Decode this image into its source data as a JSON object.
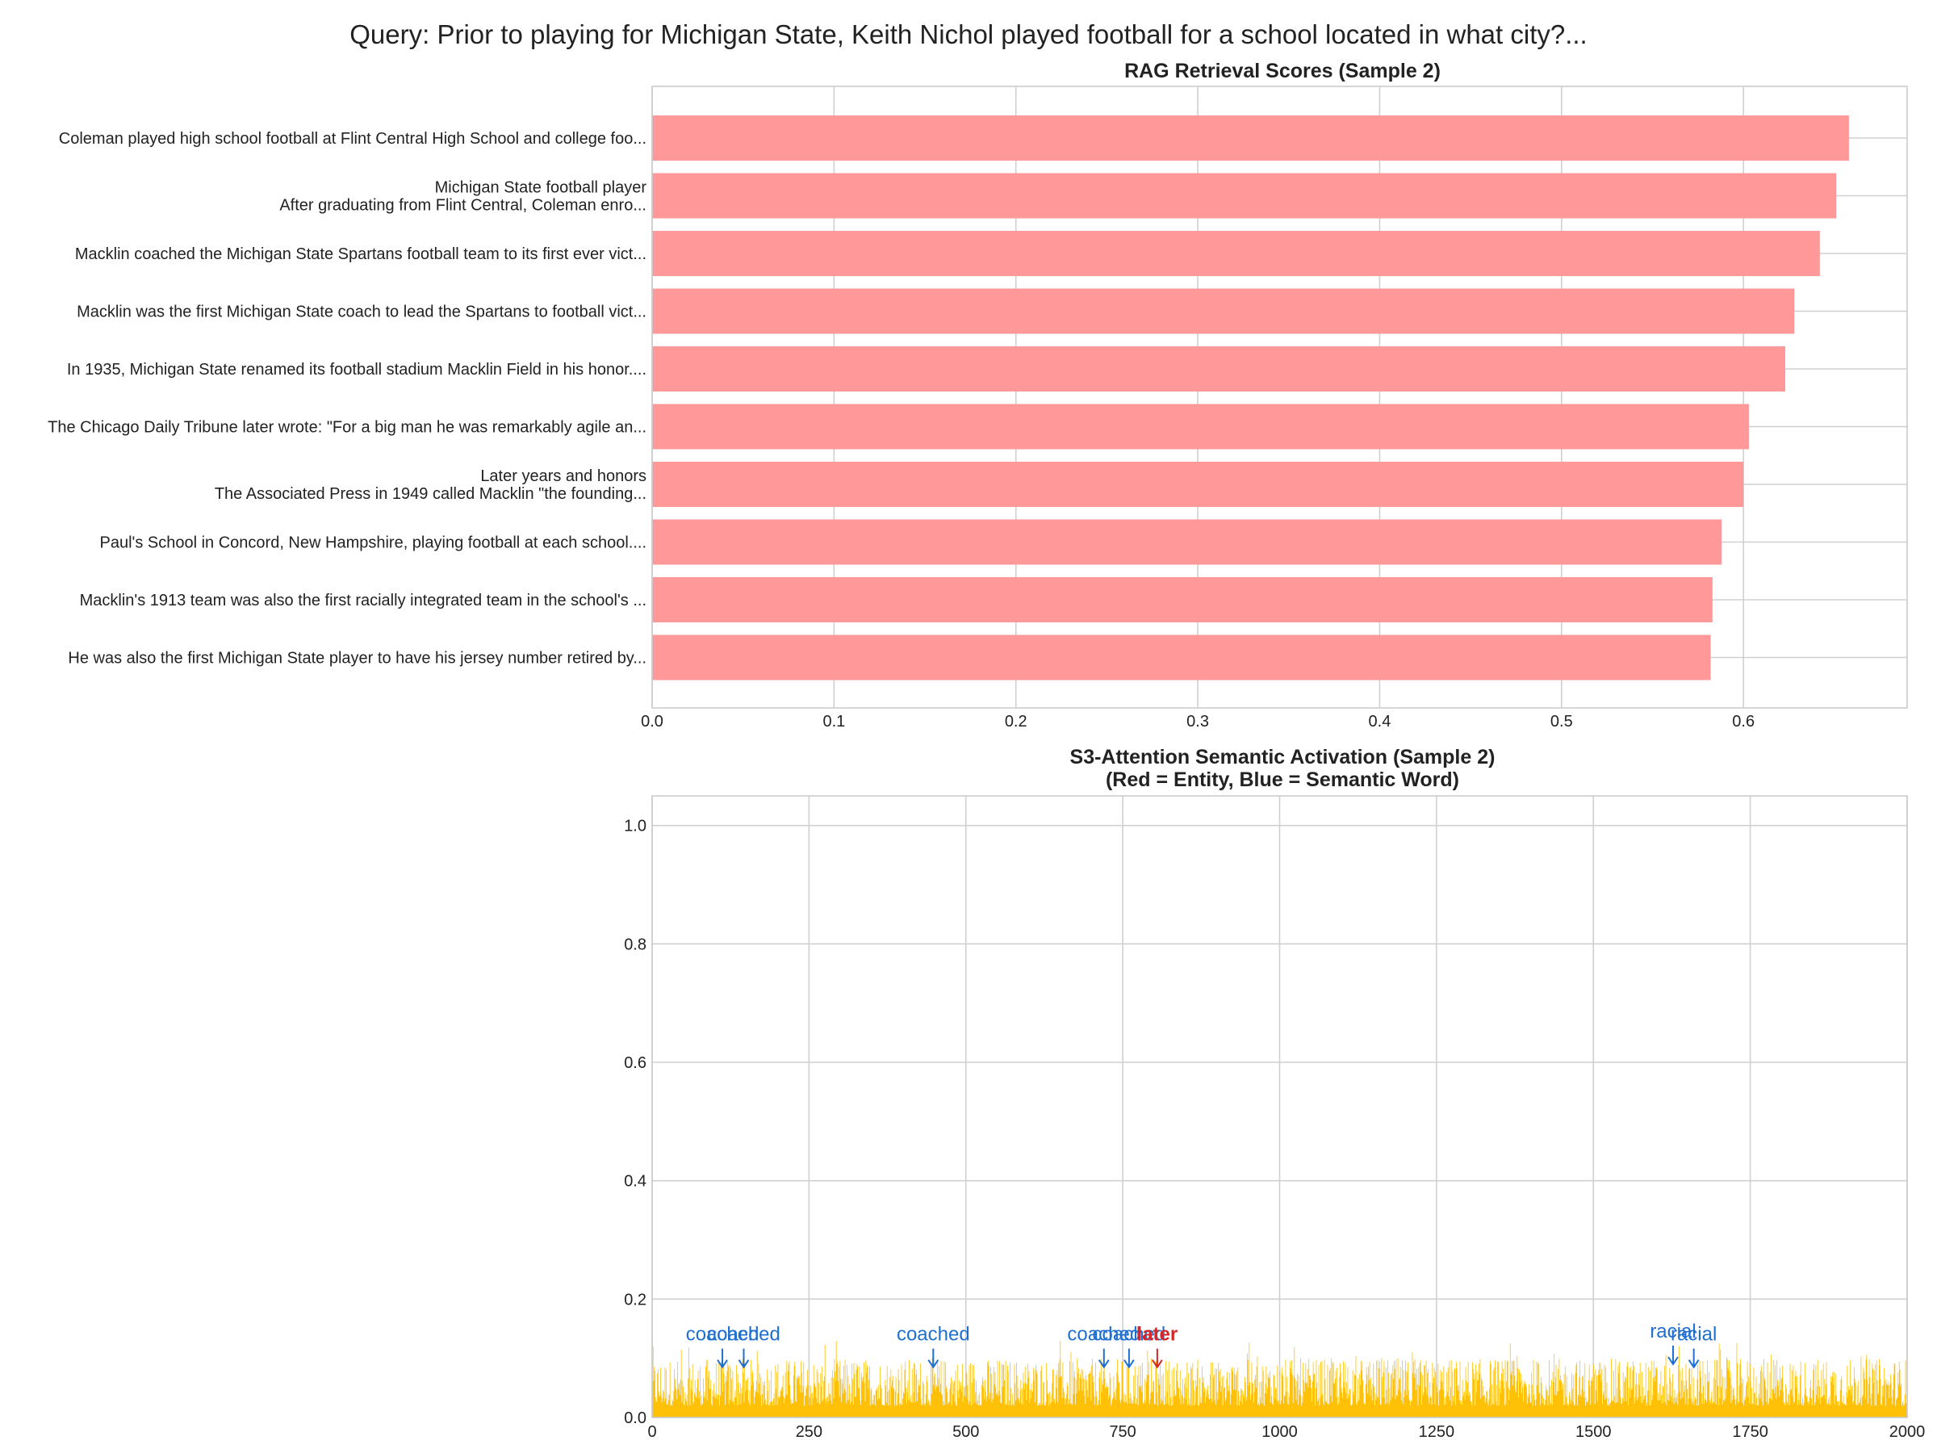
{
  "suptitle": "Query: Prior to playing for Michigan State, Keith Nichol played football for a school located in what city?...",
  "chart_data": [
    {
      "type": "bar",
      "orientation": "horizontal",
      "title": "RAG Retrieval Scores (Sample 2)",
      "color": "#ff9999",
      "categories": [
        "Coleman played high school football at Flint Central High School and college foo...",
        "Michigan State football player\nAfter graduating from Flint Central, Coleman enro...",
        "Macklin coached the Michigan State Spartans football team to its first ever vict...",
        "Macklin was the first Michigan State coach to lead the Spartans to football vict...",
        "In 1935, Michigan State renamed its football stadium Macklin Field in his honor....",
        "The Chicago Daily Tribune later wrote: \"For a big man he was remarkably agile an...",
        "Later years and honors\nThe Associated Press in 1949 called Macklin \"the founding...",
        "Paul's School in Concord, New Hampshire, playing football at each school....",
        "Macklin's 1913 team was also the first racially integrated team in the school's ...",
        "He was also the first Michigan State player to have his jersey number retired by..."
      ],
      "values": [
        0.658,
        0.651,
        0.642,
        0.628,
        0.623,
        0.603,
        0.6,
        0.588,
        0.583,
        0.582
      ],
      "xlim": [
        0,
        0.69
      ],
      "xticks": [
        "0.0",
        "0.1",
        "0.2",
        "0.3",
        "0.4",
        "0.5",
        "0.6"
      ],
      "grid": true
    },
    {
      "type": "bar",
      "title": "S3-Attention Semantic Activation (Sample 2)",
      "subtitle": "(Red = Entity, Blue = Semantic Word)",
      "color": "#ffc107",
      "xlim": [
        0,
        2000
      ],
      "ylim": [
        0,
        1.05
      ],
      "xticks": [
        "0",
        "250",
        "500",
        "750",
        "1000",
        "1250",
        "1500",
        "1750",
        "2000"
      ],
      "yticks": [
        "0.0",
        "0.2",
        "0.4",
        "0.6",
        "0.8",
        "1.0"
      ],
      "num_tokens": 2000,
      "activation_typical_range": [
        0.02,
        0.1
      ],
      "activation_max": 0.13,
      "grid": true,
      "annotations": [
        {
          "x": 112,
          "y": 0.085,
          "label": "coached",
          "kind": "semantic",
          "color": "#1f6fd1"
        },
        {
          "x": 146,
          "y": 0.085,
          "label": "coached",
          "kind": "semantic",
          "color": "#1f6fd1"
        },
        {
          "x": 448,
          "y": 0.085,
          "label": "coached",
          "kind": "semantic",
          "color": "#1f6fd1"
        },
        {
          "x": 720,
          "y": 0.085,
          "label": "coached",
          "kind": "semantic",
          "color": "#1f6fd1"
        },
        {
          "x": 760,
          "y": 0.085,
          "label": "coached",
          "kind": "semantic",
          "color": "#1f6fd1"
        },
        {
          "x": 805,
          "y": 0.085,
          "label": "later",
          "kind": "entity",
          "color": "#d62728"
        },
        {
          "x": 1627,
          "y": 0.09,
          "label": "racial",
          "kind": "semantic",
          "color": "#1f6fd1"
        },
        {
          "x": 1660,
          "y": 0.085,
          "label": "racial",
          "kind": "semantic",
          "color": "#1f6fd1"
        }
      ]
    }
  ]
}
